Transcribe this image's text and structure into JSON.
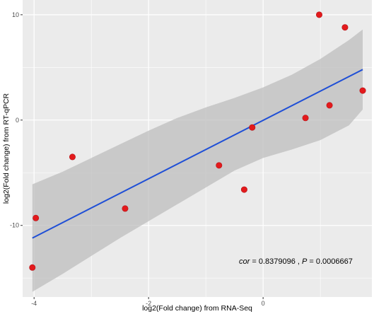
{
  "chart_data": {
    "type": "scatter",
    "xlabel": "log2(Fold change) from RNA-Seq",
    "ylabel": "log2(Fold change) from RT-qPCR",
    "xlim": [
      -4.2,
      1.9
    ],
    "ylim": [
      -16.8,
      11.4
    ],
    "x_ticks": [
      -4,
      -2,
      0
    ],
    "x_tick_labels": [
      "-4",
      "-2",
      "0"
    ],
    "y_ticks": [
      -10,
      0,
      10
    ],
    "y_tick_labels": [
      "-10",
      "0",
      "10"
    ],
    "grid": true,
    "background": "#ebebeb",
    "point_color": "#e31a1c",
    "line_color": "#1f4fd6",
    "band_color": "#bdbdbd",
    "points": [
      {
        "x": -4.03,
        "y": -14.0
      },
      {
        "x": -3.97,
        "y": -9.3
      },
      {
        "x": -3.33,
        "y": -3.5
      },
      {
        "x": -2.41,
        "y": -8.4
      },
      {
        "x": -0.77,
        "y": -4.3
      },
      {
        "x": -0.33,
        "y": -6.6
      },
      {
        "x": -0.19,
        "y": -0.7
      },
      {
        "x": 0.74,
        "y": 0.2
      },
      {
        "x": 0.98,
        "y": 10.0
      },
      {
        "x": 1.16,
        "y": 1.4
      },
      {
        "x": 1.43,
        "y": 8.8
      },
      {
        "x": 1.74,
        "y": 2.8
      }
    ],
    "fit": {
      "x": [
        -4.03,
        1.74
      ],
      "y": [
        -11.2,
        4.8
      ]
    },
    "confidence_band": {
      "x": [
        -4.03,
        -3.5,
        -3.0,
        -2.5,
        -2.0,
        -1.5,
        -1.0,
        -0.5,
        0.0,
        0.5,
        1.0,
        1.5,
        1.74
      ],
      "upper": [
        -6.1,
        -4.9,
        -3.6,
        -2.3,
        -1.0,
        0.2,
        1.2,
        2.1,
        3.1,
        4.3,
        5.8,
        7.6,
        8.6
      ],
      "lower": [
        -16.3,
        -14.6,
        -12.9,
        -11.2,
        -9.6,
        -8.0,
        -6.4,
        -4.8,
        -3.6,
        -2.8,
        -1.9,
        -0.5,
        1.0
      ]
    },
    "annotation": {
      "cor_label": "cor",
      "cor_value": " = 0.8379096 , ",
      "p_label": "P",
      "p_value": " = 0.0006667"
    }
  }
}
